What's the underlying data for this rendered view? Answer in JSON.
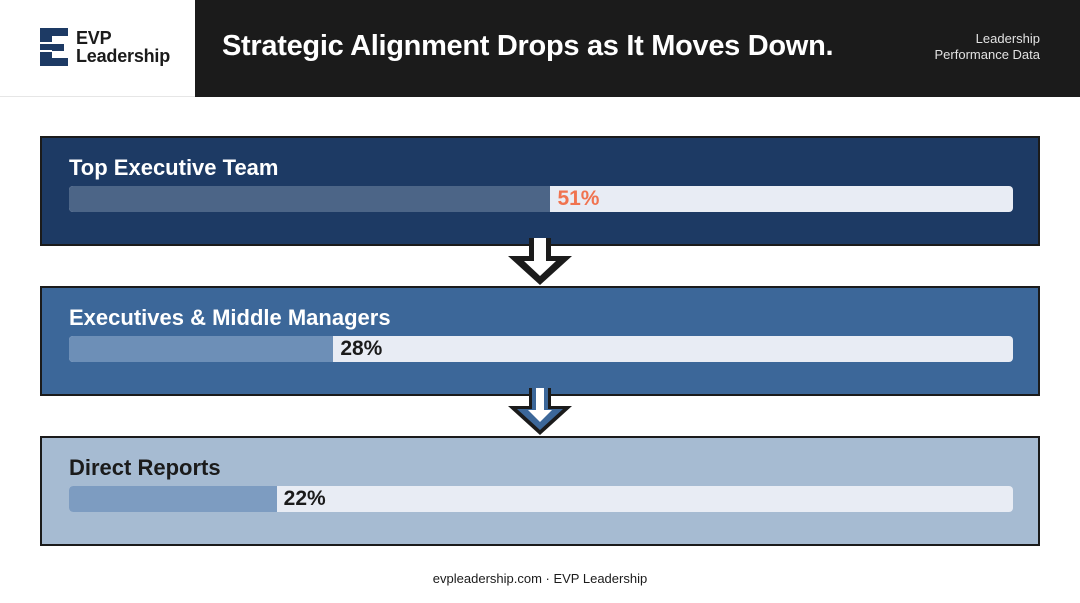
{
  "brand": {
    "logo_line1": "EVP",
    "logo_line2": "Leadership"
  },
  "header": {
    "title": "Strategic Alignment Drops as It Moves Down.",
    "subtitle_line1": "Leadership",
    "subtitle_line2": "Performance Data"
  },
  "chart_data": {
    "type": "bar",
    "categories": [
      "Top Executive Team",
      "Executives & Middle Managers",
      "Direct Reports"
    ],
    "values": [
      51,
      28,
      22
    ],
    "value_labels": [
      "51%",
      "28%",
      "22%"
    ],
    "ylim": [
      0,
      100
    ],
    "panel_colors": [
      "#1d3a64",
      "#3c6799",
      "#a6bbd2"
    ],
    "label_colors": [
      "#ffffff",
      "#ffffff",
      "#1b1b1b"
    ],
    "value_colors": [
      "#f0734f",
      "#1b1b1b",
      "#1b1b1b"
    ],
    "fill_colors": [
      "#4c6587",
      "#6d8fb7",
      "#7d9cc1"
    ]
  },
  "colors": {
    "dark": "#1b1b1b",
    "track": "#e8ecf4",
    "accent": "#f0734f"
  },
  "footer": {
    "text": "evpleadership.com · EVP Leadership"
  }
}
